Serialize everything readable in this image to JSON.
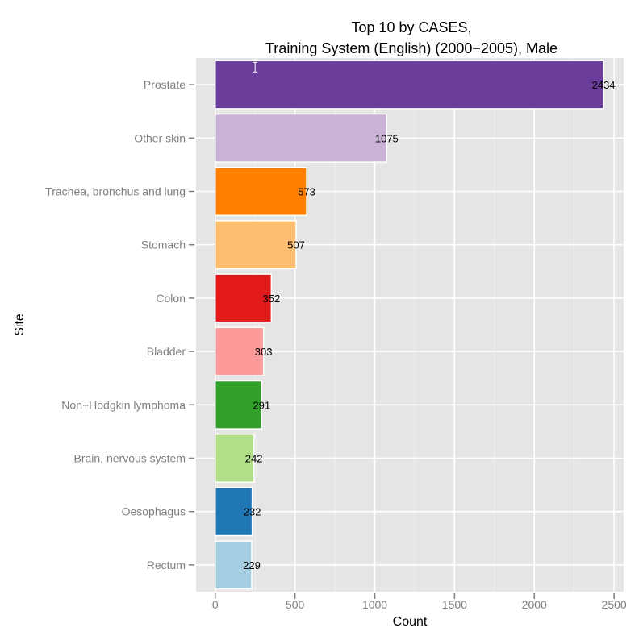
{
  "chart_data": {
    "type": "bar",
    "orientation": "horizontal",
    "title_lines": [
      "Top 10 by CASES,",
      "Training System (English) (2000−2005), Male"
    ],
    "xlabel": "Count",
    "ylabel": "Site",
    "xlim": [
      -120,
      2560
    ],
    "x_ticks": [
      0,
      500,
      1000,
      1500,
      2000,
      2500
    ],
    "x_tick_labels": [
      "0",
      "500",
      "1000",
      "1500",
      "2000",
      "2500"
    ],
    "categories": [
      "Prostate",
      "Other skin",
      "Trachea, bronchus and lung",
      "Stomach",
      "Colon",
      "Bladder",
      "Non−Hodgkin lymphoma",
      "Brain, nervous system",
      "Oesophagus",
      "Rectum"
    ],
    "values": [
      2434,
      1075,
      573,
      507,
      352,
      303,
      291,
      242,
      232,
      229
    ],
    "value_labels": [
      "2434",
      "1075",
      "573",
      "507",
      "352",
      "303",
      "291",
      "242",
      "232",
      "229"
    ],
    "colors": [
      "#6a3d9a",
      "#cab2d6",
      "#ff7f00",
      "#fdbf6f",
      "#e31a1c",
      "#fb9a99",
      "#33a02c",
      "#b2df8a",
      "#1f78b4",
      "#a6cee3"
    ],
    "error_bar": {
      "category": "Prostate",
      "x": 250
    },
    "panel_background": "#e5e5e5",
    "grid": true,
    "legend": "none"
  }
}
